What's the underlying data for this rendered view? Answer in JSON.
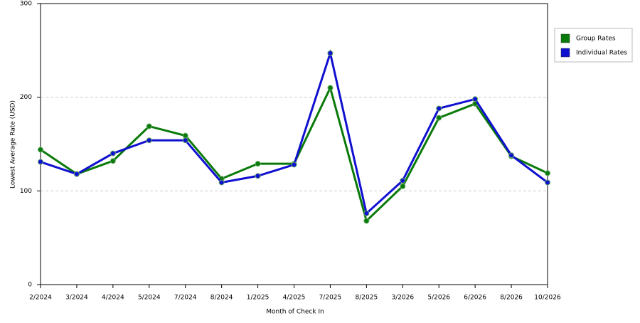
{
  "chart_data": {
    "type": "line",
    "x_label": "Month of Check In",
    "y_label": "Lowest Average Rate (USD)",
    "categories": [
      "2/2024",
      "3/2024",
      "4/2024",
      "5/2024",
      "7/2024",
      "8/2024",
      "1/2025",
      "4/2025",
      "7/2025",
      "8/2025",
      "3/2026",
      "5/2026",
      "6/2026",
      "8/2026",
      "10/2026"
    ],
    "series": [
      {
        "name": "Group Rates",
        "color": "#0a7a0a",
        "values": [
          144,
          118,
          132,
          169,
          159,
          113,
          129,
          129,
          210,
          68,
          105,
          178,
          193,
          137,
          119
        ]
      },
      {
        "name": "Individual Rates",
        "color": "#1010d0",
        "values": [
          131,
          118,
          140,
          154,
          154,
          109,
          116,
          128,
          247,
          76,
          111,
          188,
          198,
          138,
          109
        ]
      }
    ],
    "ylim": [
      0,
      300
    ],
    "yticks": [
      0,
      100,
      200,
      300
    ],
    "grid": true,
    "legend": "right"
  }
}
